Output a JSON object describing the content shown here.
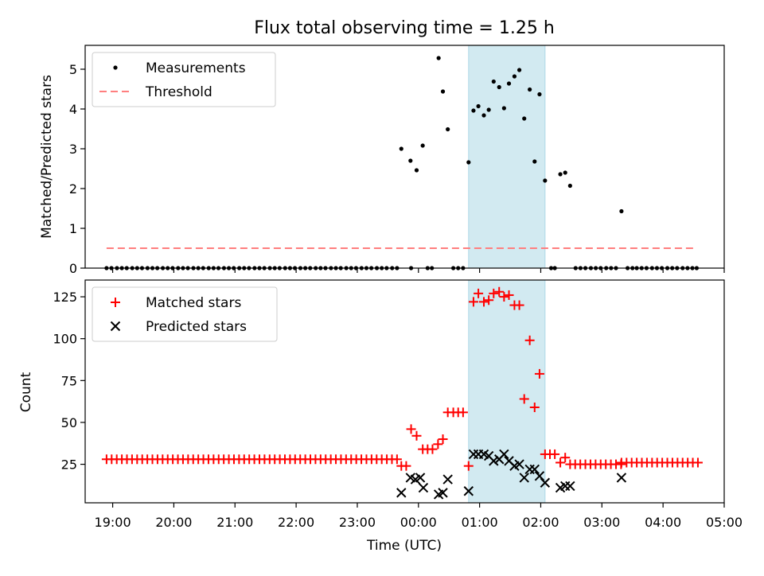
{
  "chart_data": {
    "title": "Flux total observing time = 1.25 h",
    "xlabel": "Time (UTC)",
    "x_unit": "hours UTC (values past 24 are after midnight of the next day)",
    "x_ticks": [
      19,
      20,
      21,
      22,
      23,
      24,
      25,
      26,
      27,
      28,
      29
    ],
    "x_tick_labels": [
      "19:00",
      "20:00",
      "21:00",
      "22:00",
      "23:00",
      "00:00",
      "01:00",
      "02:00",
      "03:00",
      "04:00",
      "05:00"
    ],
    "xlim": [
      18.55,
      29.0
    ],
    "shaded_span": {
      "x_start": 24.82,
      "x_end": 26.07,
      "color": "#add8e6"
    },
    "colors": {
      "measurements": "#000000",
      "threshold": "#ff7f7f",
      "matched": "#ff0000",
      "predicted": "#000000",
      "span": "#add8e6"
    },
    "panels": [
      {
        "type": "scatter",
        "ylabel": "Matched/Predicted stars",
        "ylim": [
          0,
          5.6
        ],
        "y_ticks": [
          0,
          1,
          2,
          3,
          4,
          5
        ],
        "legend": [
          "Measurements",
          "Threshold"
        ],
        "legend_loc": "upper left",
        "threshold": {
          "name": "Threshold",
          "value": 0.5,
          "x_range": [
            18.9,
            28.55
          ],
          "style": "dashed"
        },
        "series": [
          {
            "name": "Measurements",
            "marker": "dot",
            "color": "#000000",
            "zero_points_x": [
              18.9,
              18.98,
              19.07,
              19.15,
              19.23,
              19.32,
              19.4,
              19.48,
              19.57,
              19.65,
              19.73,
              19.82,
              19.9,
              19.98,
              20.07,
              20.15,
              20.23,
              20.32,
              20.4,
              20.48,
              20.57,
              20.65,
              20.73,
              20.82,
              20.9,
              20.98,
              21.07,
              21.15,
              21.23,
              21.32,
              21.4,
              21.48,
              21.57,
              21.65,
              21.73,
              21.82,
              21.9,
              21.98,
              22.07,
              22.15,
              22.23,
              22.32,
              22.4,
              22.48,
              22.57,
              22.65,
              22.73,
              22.82,
              22.9,
              22.98,
              23.07,
              23.15,
              23.23,
              23.32,
              23.4,
              23.48,
              23.57,
              23.65,
              23.88,
              24.15,
              24.22,
              24.57,
              24.65,
              24.73,
              26.17,
              26.23,
              26.57,
              26.65,
              26.73,
              26.82,
              26.9,
              26.98,
              27.07,
              27.15,
              27.23,
              27.42,
              27.5,
              27.57,
              27.65,
              27.73,
              27.82,
              27.9,
              27.98,
              28.07,
              28.15,
              28.23,
              28.32,
              28.4,
              28.48,
              28.55
            ],
            "points": [
              {
                "x": 23.72,
                "y": 3.0
              },
              {
                "x": 23.87,
                "y": 2.7
              },
              {
                "x": 23.97,
                "y": 2.46
              },
              {
                "x": 24.07,
                "y": 3.08
              },
              {
                "x": 24.33,
                "y": 5.28
              },
              {
                "x": 24.4,
                "y": 4.44
              },
              {
                "x": 24.48,
                "y": 3.49
              },
              {
                "x": 24.82,
                "y": 2.66
              },
              {
                "x": 24.9,
                "y": 3.96
              },
              {
                "x": 24.98,
                "y": 4.07
              },
              {
                "x": 25.07,
                "y": 3.84
              },
              {
                "x": 25.15,
                "y": 3.98
              },
              {
                "x": 25.23,
                "y": 4.69
              },
              {
                "x": 25.32,
                "y": 4.55
              },
              {
                "x": 25.4,
                "y": 4.02
              },
              {
                "x": 25.48,
                "y": 4.64
              },
              {
                "x": 25.57,
                "y": 4.82
              },
              {
                "x": 25.65,
                "y": 4.98
              },
              {
                "x": 25.73,
                "y": 3.76
              },
              {
                "x": 25.82,
                "y": 4.49
              },
              {
                "x": 25.9,
                "y": 2.68
              },
              {
                "x": 25.98,
                "y": 4.37
              },
              {
                "x": 26.07,
                "y": 2.2
              },
              {
                "x": 26.32,
                "y": 2.36
              },
              {
                "x": 26.4,
                "y": 2.4
              },
              {
                "x": 26.48,
                "y": 2.07
              },
              {
                "x": 27.32,
                "y": 1.43
              }
            ]
          }
        ]
      },
      {
        "type": "scatter",
        "ylabel": "Count",
        "ylim": [
          2,
          135
        ],
        "y_ticks": [
          25,
          50,
          75,
          100,
          125
        ],
        "legend": [
          "Matched stars",
          "Predicted stars"
        ],
        "legend_loc": "upper left",
        "series": [
          {
            "name": "Matched stars",
            "marker": "plus",
            "color": "#ff0000",
            "flat_run": {
              "value": 28,
              "x_start": 18.9,
              "x_end": 23.65,
              "step": 0.08333
            },
            "points": [
              {
                "x": 23.72,
                "y": 24
              },
              {
                "x": 23.8,
                "y": 24
              },
              {
                "x": 23.88,
                "y": 46
              },
              {
                "x": 23.97,
                "y": 42
              },
              {
                "x": 24.07,
                "y": 34
              },
              {
                "x": 24.15,
                "y": 34
              },
              {
                "x": 24.23,
                "y": 34
              },
              {
                "x": 24.32,
                "y": 37
              },
              {
                "x": 24.4,
                "y": 40
              },
              {
                "x": 24.48,
                "y": 56
              },
              {
                "x": 24.57,
                "y": 56
              },
              {
                "x": 24.65,
                "y": 56
              },
              {
                "x": 24.73,
                "y": 56
              },
              {
                "x": 24.82,
                "y": 24
              },
              {
                "x": 24.9,
                "y": 122
              },
              {
                "x": 24.98,
                "y": 127
              },
              {
                "x": 25.07,
                "y": 122
              },
              {
                "x": 25.15,
                "y": 123
              },
              {
                "x": 25.23,
                "y": 127
              },
              {
                "x": 25.32,
                "y": 128
              },
              {
                "x": 25.4,
                "y": 125
              },
              {
                "x": 25.48,
                "y": 126
              },
              {
                "x": 25.57,
                "y": 120
              },
              {
                "x": 25.65,
                "y": 120
              },
              {
                "x": 25.73,
                "y": 64
              },
              {
                "x": 25.82,
                "y": 99
              },
              {
                "x": 25.9,
                "y": 59
              },
              {
                "x": 25.98,
                "y": 79
              },
              {
                "x": 26.07,
                "y": 31
              },
              {
                "x": 26.15,
                "y": 31
              },
              {
                "x": 26.23,
                "y": 31
              },
              {
                "x": 26.32,
                "y": 26
              },
              {
                "x": 26.4,
                "y": 29
              }
            ],
            "flat_run_after": {
              "value": 25,
              "x_start": 26.48,
              "x_end": 27.32,
              "step": 0.08333
            },
            "flat_run_final": {
              "value": 26,
              "x_start": 27.32,
              "x_end": 28.57,
              "step": 0.08333
            }
          },
          {
            "name": "Predicted stars",
            "marker": "x",
            "color": "#000000",
            "points": [
              {
                "x": 23.72,
                "y": 8
              },
              {
                "x": 23.87,
                "y": 17
              },
              {
                "x": 23.95,
                "y": 16
              },
              {
                "x": 24.03,
                "y": 17
              },
              {
                "x": 24.08,
                "y": 11
              },
              {
                "x": 24.33,
                "y": 7
              },
              {
                "x": 24.4,
                "y": 8
              },
              {
                "x": 24.48,
                "y": 16
              },
              {
                "x": 24.82,
                "y": 9
              },
              {
                "x": 24.9,
                "y": 31
              },
              {
                "x": 24.98,
                "y": 31
              },
              {
                "x": 25.07,
                "y": 31
              },
              {
                "x": 25.15,
                "y": 30
              },
              {
                "x": 25.23,
                "y": 27
              },
              {
                "x": 25.32,
                "y": 28
              },
              {
                "x": 25.4,
                "y": 31
              },
              {
                "x": 25.48,
                "y": 27
              },
              {
                "x": 25.57,
                "y": 24
              },
              {
                "x": 25.65,
                "y": 25
              },
              {
                "x": 25.73,
                "y": 17
              },
              {
                "x": 25.82,
                "y": 22
              },
              {
                "x": 25.9,
                "y": 22
              },
              {
                "x": 25.98,
                "y": 18
              },
              {
                "x": 26.07,
                "y": 14
              },
              {
                "x": 26.32,
                "y": 11
              },
              {
                "x": 26.4,
                "y": 12
              },
              {
                "x": 26.48,
                "y": 12
              },
              {
                "x": 27.32,
                "y": 17
              }
            ]
          }
        ]
      }
    ]
  }
}
